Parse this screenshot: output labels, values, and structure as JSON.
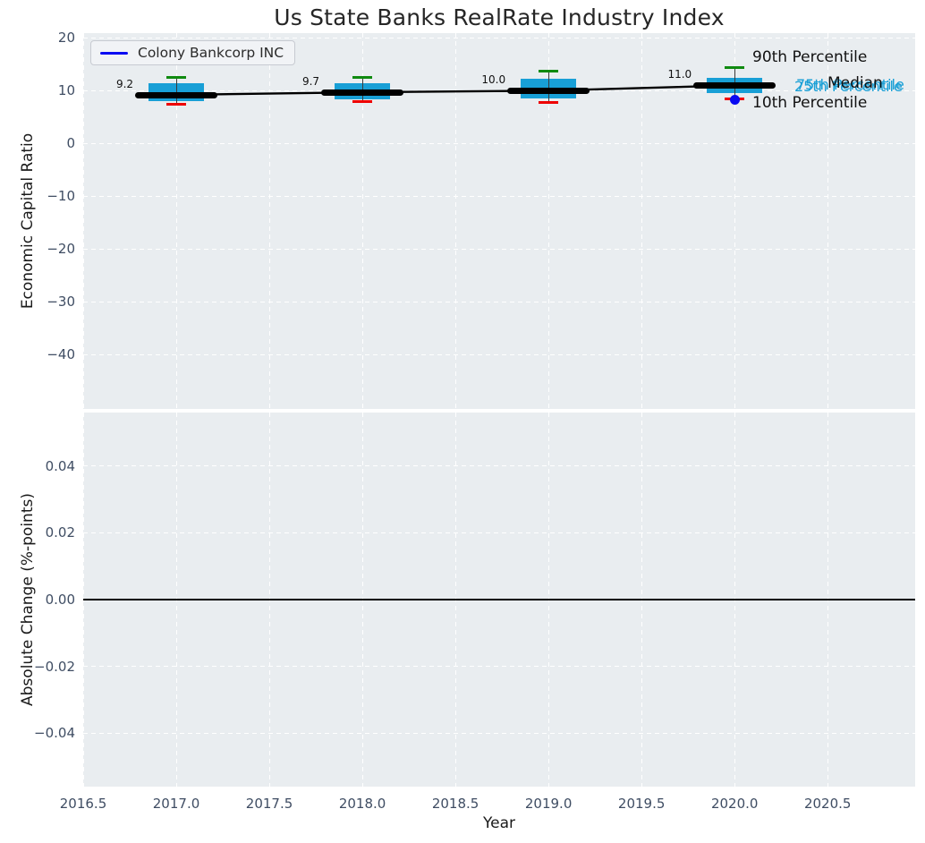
{
  "title": "Us State Banks RealRate Industry Index",
  "legend": {
    "label": "Colony Bankcorp INC"
  },
  "colors": {
    "box_fill": "#189fd6",
    "p90_cap": "#0f8a10",
    "p10_cap": "#ee0000",
    "median": "#000000",
    "company_blue": "#0a0af2",
    "plot_bg": "#e9edf0",
    "grid": "#ffffff",
    "tick_label": "#3f4d63"
  },
  "annotations": {
    "p90": "90th Percentile",
    "p75": "75th Percentile",
    "median": "Median",
    "p25": "25th Percentile",
    "p10": "10th Percentile"
  },
  "chart_data": [
    {
      "type": "bar",
      "subtype": "boxplot-with-median-line",
      "ylabel": "Economic Capital Ratio",
      "xlabel": "",
      "xlim": [
        2016.5,
        2020.97
      ],
      "ylim": [
        -50.3,
        20.9
      ],
      "xticks": {
        "values": [
          2016.5,
          2017.0,
          2017.5,
          2018.0,
          2018.5,
          2019.0,
          2019.5,
          2020.0,
          2020.5
        ],
        "labels": [
          "2016.5",
          "2017.0",
          "2017.5",
          "2018.0",
          "2018.5",
          "2019.0",
          "2019.5",
          "2020.0",
          "2020.5"
        ],
        "show_labels": false
      },
      "yticks": {
        "values": [
          20,
          10,
          0,
          -10,
          -20,
          -30,
          -40
        ],
        "labels": [
          "20",
          "10",
          "0",
          "−10",
          "−20",
          "−30",
          "−40"
        ]
      },
      "grid": "white-dashed",
      "boxes": [
        {
          "x": 2017,
          "median": 9.2,
          "q1": 8.0,
          "q3": 11.4,
          "p10": 7.4,
          "p90": 12.5,
          "label": "9.2"
        },
        {
          "x": 2018,
          "median": 9.7,
          "q1": 8.3,
          "q3": 11.4,
          "p10": 7.9,
          "p90": 12.5,
          "label": "9.7"
        },
        {
          "x": 2019,
          "median": 10.0,
          "q1": 8.6,
          "q3": 12.2,
          "p10": 7.8,
          "p90": 13.7,
          "label": "10.0"
        },
        {
          "x": 2020,
          "median": 11.0,
          "q1": 9.5,
          "q3": 12.4,
          "p10": 8.5,
          "p90": 14.3,
          "label": "11.0"
        }
      ],
      "median_line": {
        "x": [
          2017,
          2018,
          2019,
          2020
        ],
        "y": [
          9.2,
          9.7,
          10.0,
          11.0
        ]
      },
      "company_point": {
        "name": "Colony Bankcorp INC",
        "x": 2020,
        "y": 8.3
      }
    },
    {
      "type": "line",
      "ylabel": "Absolute Change (%-points)",
      "xlabel": "Year",
      "xlim": [
        2016.5,
        2020.97
      ],
      "ylim": [
        -0.0561,
        0.0561
      ],
      "xticks": {
        "values": [
          2016.5,
          2017.0,
          2017.5,
          2018.0,
          2018.5,
          2019.0,
          2019.5,
          2020.0,
          2020.5
        ],
        "labels": [
          "2016.5",
          "2017.0",
          "2017.5",
          "2018.0",
          "2018.5",
          "2019.0",
          "2019.5",
          "2020.0",
          "2020.5"
        ],
        "show_labels": true
      },
      "yticks": {
        "values": [
          0.04,
          0.02,
          0.0,
          -0.02,
          -0.04
        ],
        "labels": [
          "0.04",
          "0.02",
          "0.00",
          "−0.02",
          "−0.04"
        ]
      },
      "grid": "white-dashed",
      "zero_line": 0.0,
      "series": []
    }
  ]
}
